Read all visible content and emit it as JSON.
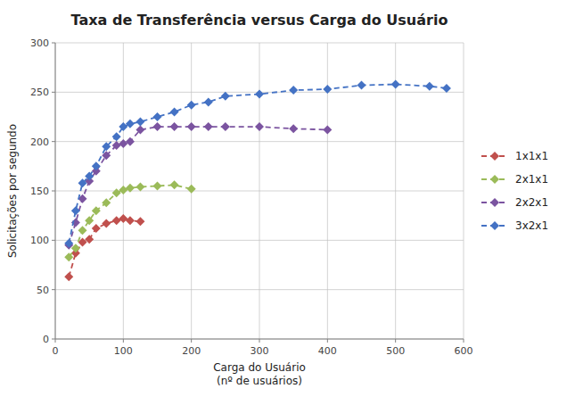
{
  "chart_data": {
    "type": "line",
    "title": "Taxa de Transferência versus Carga do Usuário",
    "xlabel": "Carga do Usuário\n(nº de usuários)",
    "ylabel": "Solicitações por segundo",
    "xlim": [
      0,
      600
    ],
    "ylim": [
      0,
      300
    ],
    "xticks": [
      0,
      100,
      200,
      300,
      400,
      500,
      600
    ],
    "yticks": [
      0,
      50,
      100,
      150,
      200,
      250,
      300
    ],
    "grid": true,
    "legend": "right",
    "series": [
      {
        "name": "1x1x1",
        "color": "#C0504D",
        "marker": "diamond",
        "line_style": "dashed",
        "x": [
          20,
          30,
          40,
          50,
          60,
          75,
          90,
          100,
          110,
          125
        ],
        "values": [
          63,
          87,
          98,
          101,
          112,
          117,
          120,
          122,
          120,
          119
        ]
      },
      {
        "name": "2x1x1",
        "color": "#9BBB59",
        "marker": "diamond",
        "line_style": "dashed",
        "x": [
          20,
          30,
          40,
          50,
          60,
          75,
          90,
          100,
          110,
          125,
          150,
          175,
          200
        ],
        "values": [
          83,
          92,
          110,
          120,
          130,
          138,
          148,
          151,
          153,
          154,
          155,
          156,
          152
        ]
      },
      {
        "name": "2x2x1",
        "color": "#7B54A0",
        "marker": "diamond",
        "line_style": "dashed",
        "x": [
          20,
          30,
          40,
          50,
          60,
          75,
          90,
          100,
          110,
          125,
          150,
          175,
          200,
          225,
          250,
          300,
          350,
          400
        ],
        "values": [
          95,
          118,
          142,
          160,
          170,
          186,
          196,
          198,
          200,
          212,
          215,
          215,
          215,
          215,
          215,
          215,
          213,
          212
        ]
      },
      {
        "name": "3x2x1",
        "color": "#4472C4",
        "marker": "diamond",
        "line_style": "dashed",
        "x": [
          20,
          30,
          40,
          50,
          60,
          75,
          90,
          100,
          110,
          125,
          150,
          175,
          200,
          225,
          250,
          300,
          350,
          400,
          450,
          500,
          550,
          575
        ],
        "values": [
          97,
          130,
          158,
          165,
          175,
          195,
          205,
          215,
          218,
          220,
          225,
          230,
          237,
          240,
          246,
          248,
          252,
          253,
          257,
          258,
          256,
          254
        ]
      }
    ]
  }
}
